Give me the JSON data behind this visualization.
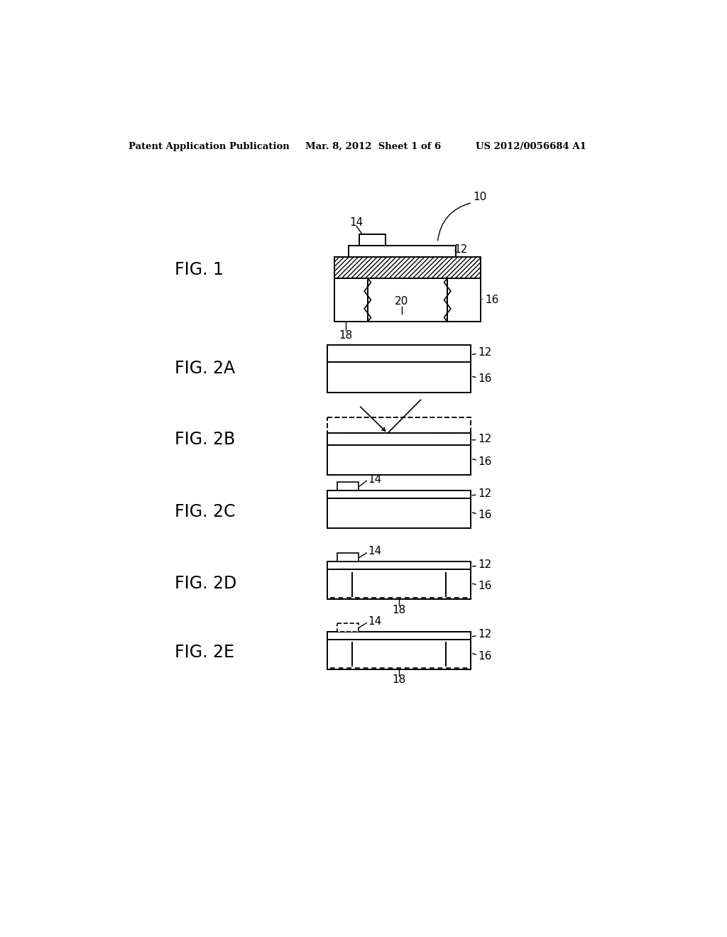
{
  "bg_color": "#ffffff",
  "header_left": "Patent Application Publication",
  "header_mid": "Mar. 8, 2012  Sheet 1 of 6",
  "header_right": "US 2012/0056684 A1",
  "fig1_label": "FIG. 1",
  "fig2a_label": "FIG. 2A",
  "fig2b_label": "FIG. 2B",
  "fig2c_label": "FIG. 2C",
  "fig2d_label": "FIG. 2D",
  "fig2e_label": "FIG. 2E",
  "text_color": "#000000",
  "line_color": "#000000"
}
